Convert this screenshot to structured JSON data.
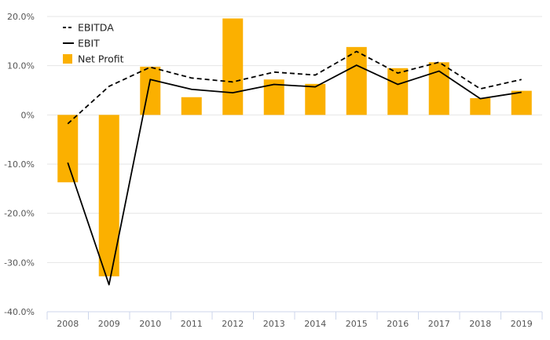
{
  "chart_data": {
    "type": "bar",
    "title": "",
    "xlabel": "",
    "ylabel": "",
    "categories": [
      "2008",
      "2009",
      "2010",
      "2011",
      "2012",
      "2013",
      "2014",
      "2015",
      "2016",
      "2017",
      "2018",
      "2019"
    ],
    "ylim": [
      -0.4,
      0.2
    ],
    "y_ticks": [
      0.2,
      0.1,
      0,
      -0.1,
      -0.2,
      -0.3,
      -0.4
    ],
    "y_tick_labels": [
      "20.0%",
      "10.0%",
      "0%",
      "-10.0%",
      "-20.0%",
      "-30.0%",
      "-40.0%"
    ],
    "grid": true,
    "legend_position": "top-left",
    "series": [
      {
        "name": "EBITDA",
        "kind": "line",
        "style": "dashed",
        "color": "#000000",
        "values": [
          -0.018,
          0.058,
          0.097,
          0.075,
          0.067,
          0.087,
          0.081,
          0.129,
          0.085,
          0.107,
          0.053,
          0.072
        ]
      },
      {
        "name": "EBIT",
        "kind": "line",
        "style": "solid",
        "color": "#000000",
        "values": [
          -0.097,
          -0.345,
          0.072,
          0.052,
          0.045,
          0.062,
          0.057,
          0.101,
          0.062,
          0.089,
          0.033,
          0.046
        ]
      },
      {
        "name": "Net Profit",
        "kind": "bar",
        "color": "#fbb000",
        "values": [
          -0.137,
          -0.328,
          0.098,
          0.036,
          0.196,
          0.072,
          0.063,
          0.138,
          0.095,
          0.107,
          0.034,
          0.049
        ]
      }
    ]
  }
}
